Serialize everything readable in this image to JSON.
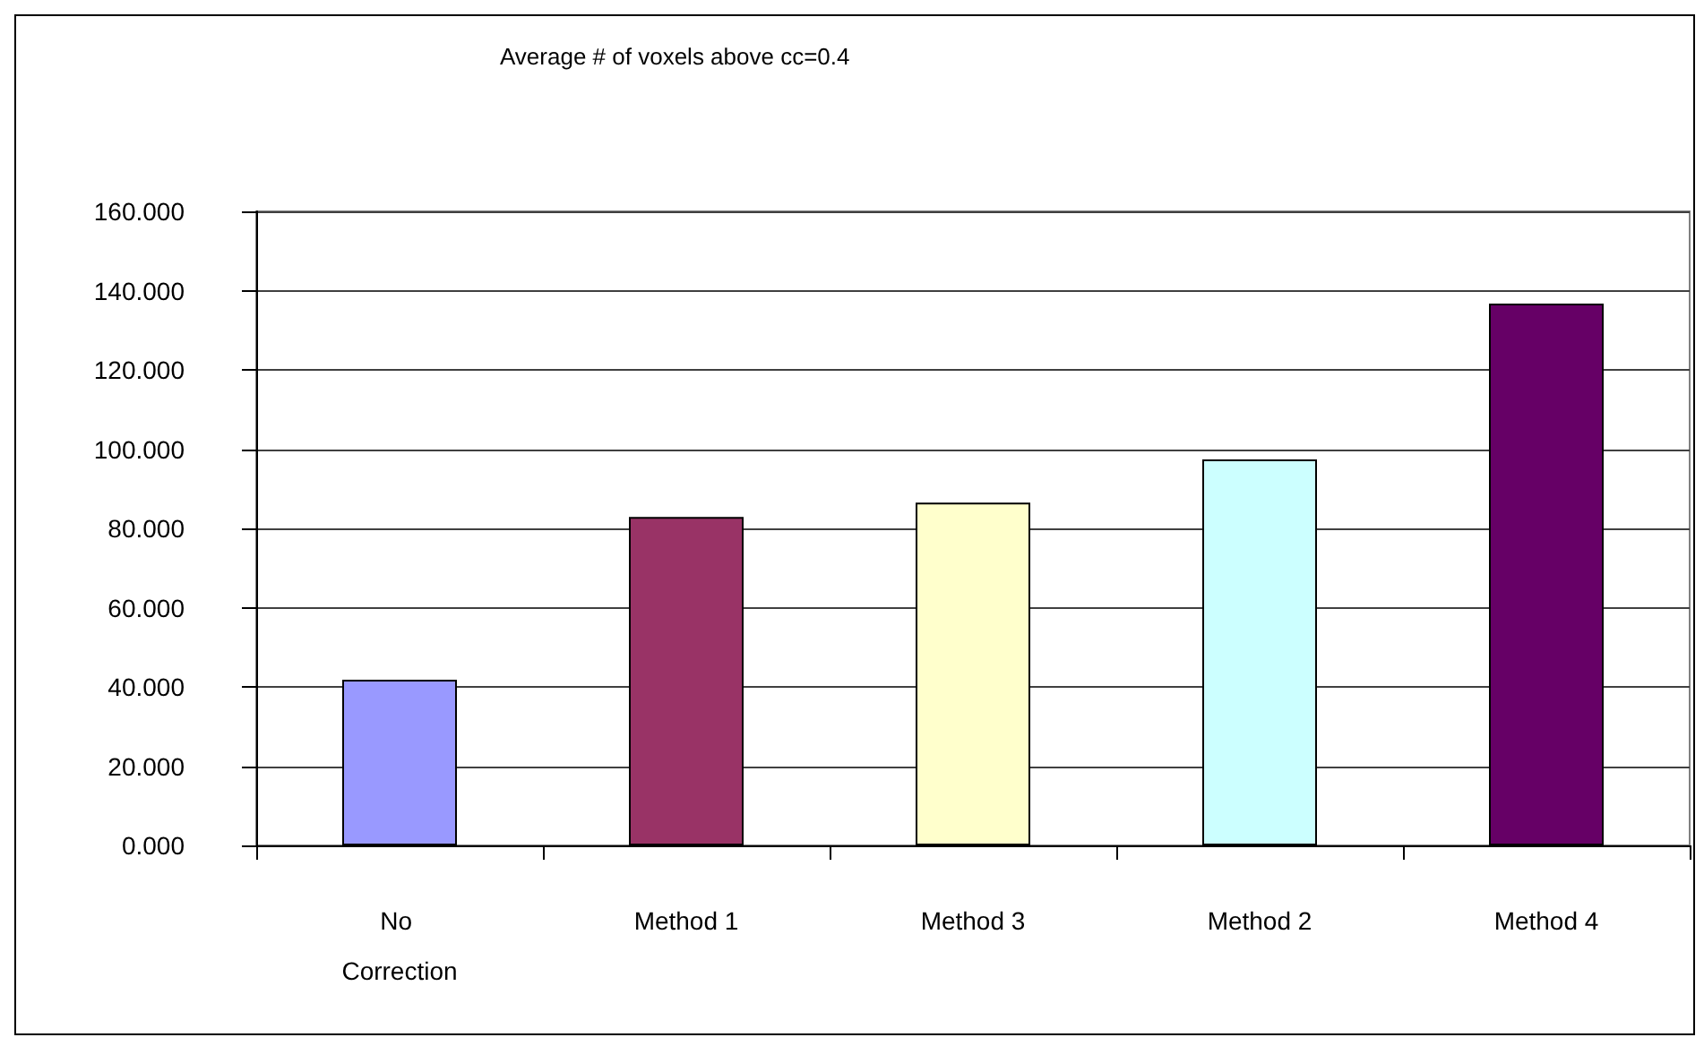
{
  "chart_data": {
    "type": "bar",
    "title": "Average # of voxels above cc=0.4",
    "categories": [
      "No Correction",
      "Method 1",
      "Method 3",
      "Method 2",
      "Method 4"
    ],
    "values": [
      41.8,
      82.9,
      86.5,
      97.4,
      136.7
    ],
    "colors": [
      "#9999ff",
      "#993366",
      "#ffffcc",
      "#ccffff",
      "#660066"
    ],
    "ylim": [
      0,
      160
    ],
    "yticks": [
      {
        "value": 0,
        "label": "0.000"
      },
      {
        "value": 20,
        "label": "20.000"
      },
      {
        "value": 40,
        "label": "40.000"
      },
      {
        "value": 60,
        "label": "60.000"
      },
      {
        "value": 80,
        "label": "80.000"
      },
      {
        "value": 100,
        "label": "100.000"
      },
      {
        "value": 120,
        "label": "120.000"
      },
      {
        "value": 140,
        "label": "140.000"
      },
      {
        "value": 160,
        "label": "160.000"
      }
    ],
    "grid": "y"
  }
}
